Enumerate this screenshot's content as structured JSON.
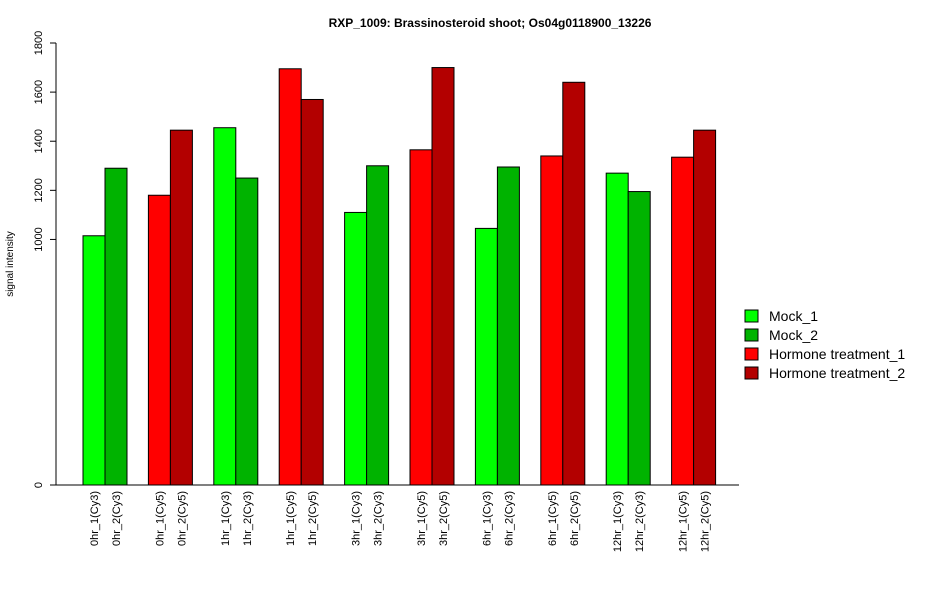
{
  "chart_data": {
    "type": "bar",
    "title": "RXP_1009: Brassinosteroid shoot; Os04g0118900_13226",
    "ylabel": "signal intensity",
    "xlabel": "",
    "ylim": [
      0,
      1800
    ],
    "yticks": [
      0,
      1000,
      1200,
      1400,
      1600,
      1800
    ],
    "grid": false,
    "legend_position": "right",
    "series": [
      {
        "name": "Mock_1",
        "color": "#00ff00"
      },
      {
        "name": "Mock_2",
        "color": "#00b300"
      },
      {
        "name": "Hormone treatment_1",
        "color": "#ff0000"
      },
      {
        "name": "Hormone treatment_2",
        "color": "#b30000"
      }
    ],
    "bars": [
      {
        "label": "0hr_1(Cy3)",
        "value": 1015,
        "series": 0
      },
      {
        "label": "0hr_2(Cy3)",
        "value": 1290,
        "series": 1
      },
      {
        "label": "0hr_1(Cy5)",
        "value": 1180,
        "series": 2
      },
      {
        "label": "0hr_2(Cy5)",
        "value": 1445,
        "series": 3
      },
      {
        "label": "1hr_1(Cy3)",
        "value": 1455,
        "series": 0
      },
      {
        "label": "1hr_2(Cy3)",
        "value": 1250,
        "series": 1
      },
      {
        "label": "1hr_1(Cy5)",
        "value": 1695,
        "series": 2
      },
      {
        "label": "1hr_2(Cy5)",
        "value": 1570,
        "series": 3
      },
      {
        "label": "3hr_1(Cy3)",
        "value": 1110,
        "series": 0
      },
      {
        "label": "3hr_2(Cy3)",
        "value": 1300,
        "series": 1
      },
      {
        "label": "3hr_1(Cy5)",
        "value": 1365,
        "series": 2
      },
      {
        "label": "3hr_2(Cy5)",
        "value": 1700,
        "series": 3
      },
      {
        "label": "6hr_1(Cy3)",
        "value": 1045,
        "series": 0
      },
      {
        "label": "6hr_2(Cy3)",
        "value": 1295,
        "series": 1
      },
      {
        "label": "6hr_1(Cy5)",
        "value": 1340,
        "series": 2
      },
      {
        "label": "6hr_2(Cy5)",
        "value": 1640,
        "series": 3
      },
      {
        "label": "12hr_1(Cy3)",
        "value": 1270,
        "series": 0
      },
      {
        "label": "12hr_2(Cy3)",
        "value": 1195,
        "series": 1
      },
      {
        "label": "12hr_1(Cy5)",
        "value": 1335,
        "series": 2
      },
      {
        "label": "12hr_2(Cy5)",
        "value": 1445,
        "series": 3
      }
    ]
  }
}
